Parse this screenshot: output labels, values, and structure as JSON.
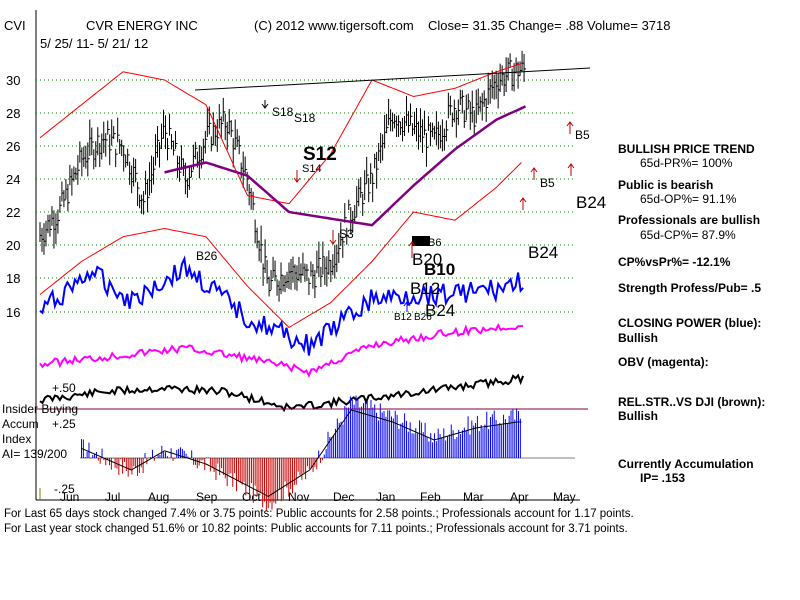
{
  "header": {
    "ticker": "CVI",
    "company": "CVR ENERGY INC",
    "copyright": "(C) 2012 www.tigersoft.com",
    "quote": "Close= 31.35  Change= .88 Volume= 3718",
    "date_range": "5/ 25/ 11- 5/ 21/ 12"
  },
  "sidebar": {
    "trend_title": "BULLISH PRICE TREND",
    "trend_value": "65d-PR%= 100%",
    "public_title": "Public is bearish",
    "public_value": "65d-OP%= 91.1%",
    "pros_title": "Professionals are bullish",
    "pros_value": "65d-CP%= 87.9%",
    "cp_vs_pr": "CP%vsPr%= -12.1%",
    "strength": "Strength Profess/Pub= .5",
    "closing_power_title": "CLOSING POWER (blue):",
    "closing_power_value": "Bullish",
    "obv_title": "OBV (magenta):",
    "relstr_title": "REL.STR..VS DJI (brown):",
    "relstr_value": "Bullish",
    "accum_title": "Currently Accumulation",
    "accum_value": "IP=  .153"
  },
  "footer": {
    "line1": "For Last 65 days stock changed  7.4% or  3.75 points:  Public accounts for  2.58 points.;  Professionals account for  1.17 points.",
    "line2": "For Last year stock changed  51.6% or  10.82 points:  Public accounts for  7.11 points.;  Professionals account for  3.71 points."
  },
  "lower_panel": {
    "insider_label": "Insider Buying",
    "accum_label": "Accum",
    "index_label": "Index",
    "ai_label": "AI= 139/200",
    "plus50": "+.50",
    "plus25": "+.25",
    "minus25": "-.25"
  },
  "colors": {
    "price_bars": "#000000",
    "bands": "#ff0000",
    "ma": "#800080",
    "closing_power": "#0000ff",
    "obv": "#ff00ff",
    "relstr": "#000000",
    "accum_pos": "#0000ff",
    "accum_neg": "#cc0000",
    "grid": "#008000"
  },
  "chart_data": {
    "type": "line",
    "title": "CVR ENERGY INC",
    "x_tick_labels": [
      "Jun",
      "Jul",
      "Aug",
      "Sep",
      "Oct",
      "Nov",
      "Dec",
      "Jan",
      "Feb",
      "Mar",
      "Apr",
      "May"
    ],
    "y_tick_labels": [
      "30",
      "28",
      "26",
      "24",
      "22",
      "20",
      "18",
      "16"
    ],
    "ylim": [
      14,
      32
    ],
    "series": [
      {
        "name": "Close (approx.)",
        "x": [
          0,
          0.5,
          1,
          1.5,
          2,
          2.5,
          3,
          3.5,
          4,
          4.5,
          5,
          5.5,
          6,
          6.5,
          7,
          7.5,
          8,
          8.5,
          9,
          9.5,
          10,
          10.5,
          11,
          11.5
        ],
        "values": [
          20.6,
          22.2,
          25.2,
          26.5,
          26.0,
          22.7,
          27.0,
          24.0,
          26.5,
          27.5,
          24.0,
          17.5,
          18.5,
          18.0,
          19.0,
          22.0,
          24.0,
          28.0,
          27.0,
          26.3,
          28.5,
          27.8,
          30.0,
          30.6
        ]
      },
      {
        "name": "65-day MA (purple)",
        "x": [
          3.0,
          4.0,
          5.0,
          6.0,
          7.0,
          8.0,
          9.0,
          10.0,
          11.0,
          11.7
        ],
        "values": [
          24.4,
          25.0,
          24.2,
          22.0,
          21.6,
          21.2,
          23.6,
          25.8,
          27.6,
          28.4
        ]
      },
      {
        "name": "Upper band (red)",
        "x": [
          0,
          1,
          2,
          3,
          4,
          5,
          6,
          7,
          8,
          9,
          10,
          11,
          11.6
        ],
        "values": [
          26.5,
          28.5,
          30.5,
          30.0,
          28.5,
          23.0,
          22.5,
          25.5,
          30.0,
          29.0,
          29.5,
          30.5,
          31.0
        ]
      },
      {
        "name": "Lower band (red)",
        "x": [
          0,
          1,
          2,
          3,
          4,
          5,
          6,
          7,
          8,
          9,
          10,
          11,
          11.6
        ],
        "values": [
          17.0,
          19.0,
          20.5,
          21.0,
          20.5,
          17.5,
          15.0,
          16.5,
          19.0,
          22.0,
          21.5,
          23.5,
          25.0
        ]
      }
    ],
    "annotations": [
      "S18",
      "S18",
      "S12",
      "S14",
      "S3",
      "B26",
      "B20",
      "B12",
      "B10",
      "B24",
      "B24",
      "B24",
      "B5",
      "B5",
      "B6",
      "B12",
      "B26"
    ]
  }
}
